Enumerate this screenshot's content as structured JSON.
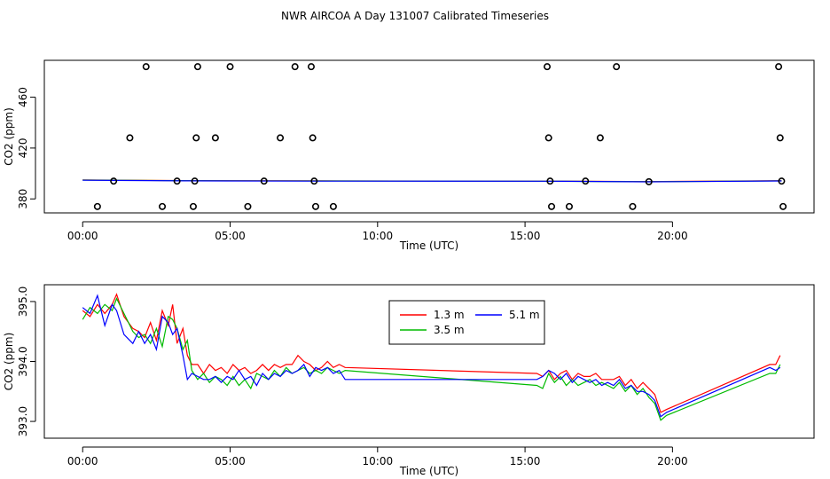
{
  "page": {
    "title": "NWR AIRCOA A  Day 131007  Calibrated Timeseries"
  },
  "chart_data": [
    {
      "type": "scatter",
      "title": "",
      "xlabel": "Time (UTC)",
      "ylabel": "CO2 (ppm)",
      "xlim": [
        -1.3,
        24.8
      ],
      "ylim": [
        369,
        489
      ],
      "x_ticks": [
        0,
        5,
        10,
        15,
        20
      ],
      "x_tick_labels": [
        "00:00",
        "05:00",
        "10:00",
        "15:00",
        "20:00"
      ],
      "y_ticks": [
        380,
        420,
        460
      ],
      "y_tick_labels": [
        "380",
        "420",
        "460"
      ],
      "points": [
        {
          "x": 0.5,
          "y": 374
        },
        {
          "x": 1.05,
          "y": 394
        },
        {
          "x": 1.6,
          "y": 428
        },
        {
          "x": 2.15,
          "y": 484
        },
        {
          "x": 2.7,
          "y": 374
        },
        {
          "x": 3.2,
          "y": 394
        },
        {
          "x": 3.75,
          "y": 374
        },
        {
          "x": 3.8,
          "y": 394
        },
        {
          "x": 3.85,
          "y": 428
        },
        {
          "x": 3.9,
          "y": 484
        },
        {
          "x": 4.5,
          "y": 428
        },
        {
          "x": 5.0,
          "y": 484
        },
        {
          "x": 5.6,
          "y": 374
        },
        {
          "x": 6.15,
          "y": 394
        },
        {
          "x": 6.7,
          "y": 428
        },
        {
          "x": 7.2,
          "y": 484
        },
        {
          "x": 7.75,
          "y": 484
        },
        {
          "x": 7.8,
          "y": 428
        },
        {
          "x": 7.85,
          "y": 394
        },
        {
          "x": 7.9,
          "y": 374
        },
        {
          "x": 8.5,
          "y": 374
        },
        {
          "x": 15.75,
          "y": 484
        },
        {
          "x": 15.8,
          "y": 428
        },
        {
          "x": 15.85,
          "y": 394
        },
        {
          "x": 15.9,
          "y": 374
        },
        {
          "x": 16.5,
          "y": 374
        },
        {
          "x": 17.05,
          "y": 394
        },
        {
          "x": 17.55,
          "y": 428
        },
        {
          "x": 18.1,
          "y": 484
        },
        {
          "x": 18.65,
          "y": 374
        },
        {
          "x": 19.2,
          "y": 393.5
        },
        {
          "x": 23.6,
          "y": 484
        },
        {
          "x": 23.65,
          "y": 428
        },
        {
          "x": 23.7,
          "y": 394
        },
        {
          "x": 23.75,
          "y": 374
        }
      ],
      "series": [
        {
          "name": "1.3 m",
          "color": "#ff0000",
          "x": [
            0,
            3.5,
            8,
            15.8,
            19.2,
            23.7
          ],
          "values": [
            394.9,
            394.4,
            394.2,
            394.0,
            393.6,
            394.3
          ]
        },
        {
          "name": "3.5 m",
          "color": "#00cc00",
          "x": [
            0,
            3.5,
            8,
            15.8,
            19.2,
            23.7
          ],
          "values": [
            394.8,
            394.3,
            394.1,
            393.9,
            393.5,
            394.2
          ]
        },
        {
          "name": "5.1 m",
          "color": "#0000ff",
          "x": [
            0,
            3.5,
            8,
            15.8,
            19.2,
            23.7
          ],
          "values": [
            394.7,
            394.2,
            394.0,
            393.9,
            393.4,
            394.1
          ]
        }
      ]
    },
    {
      "type": "line",
      "title": "",
      "xlabel": "Time (UTC)",
      "ylabel": "CO2 (ppm)",
      "xlim": [
        -1.3,
        24.8
      ],
      "ylim": [
        392.72,
        395.28
      ],
      "x_ticks": [
        0,
        5,
        10,
        15,
        20
      ],
      "x_tick_labels": [
        "00:00",
        "05:00",
        "10:00",
        "15:00",
        "20:00"
      ],
      "y_ticks": [
        393.0,
        394.0,
        395.0
      ],
      "y_tick_labels": [
        "393.0",
        "394.0",
        "395.0"
      ],
      "legend": {
        "position": "top-center",
        "labels": [
          "1.3 m",
          "5.1 m",
          "3.5 m"
        ]
      },
      "series": [
        {
          "name": "1.3 m",
          "color": "#ff0000",
          "x": [
            0.0,
            0.25,
            0.5,
            0.75,
            1.0,
            1.15,
            1.4,
            1.7,
            1.9,
            2.1,
            2.3,
            2.5,
            2.7,
            2.9,
            3.05,
            3.2,
            3.4,
            3.55,
            3.7,
            3.9,
            4.1,
            4.3,
            4.5,
            4.7,
            4.9,
            5.1,
            5.3,
            5.5,
            5.7,
            5.9,
            6.1,
            6.3,
            6.5,
            6.7,
            6.9,
            7.1,
            7.3,
            7.5,
            7.7,
            7.9,
            8.1,
            8.3,
            8.5,
            8.7,
            8.9,
            15.4,
            15.6,
            15.8,
            16.0,
            16.2,
            16.4,
            16.6,
            16.8,
            17.0,
            17.2,
            17.4,
            17.6,
            17.8,
            18.0,
            18.2,
            18.4,
            18.6,
            18.8,
            19.0,
            19.2,
            19.4,
            19.6,
            19.8,
            23.3,
            23.5,
            23.65
          ],
          "values": [
            394.85,
            394.75,
            394.95,
            394.8,
            394.95,
            395.12,
            394.75,
            394.55,
            394.5,
            394.4,
            394.65,
            394.35,
            394.85,
            394.6,
            394.95,
            394.3,
            394.55,
            394.1,
            393.95,
            393.95,
            393.8,
            393.95,
            393.85,
            393.9,
            393.8,
            393.95,
            393.85,
            393.9,
            393.8,
            393.85,
            393.95,
            393.85,
            393.95,
            393.9,
            393.95,
            393.95,
            394.1,
            394.0,
            393.95,
            393.85,
            393.9,
            394.0,
            393.9,
            393.95,
            393.9,
            393.8,
            393.75,
            393.85,
            393.7,
            393.8,
            393.85,
            393.7,
            393.8,
            393.75,
            393.75,
            393.8,
            393.7,
            393.7,
            393.7,
            393.75,
            393.6,
            393.7,
            393.55,
            393.65,
            393.55,
            393.45,
            393.15,
            393.2,
            393.95,
            393.95,
            394.1
          ]
        },
        {
          "name": "3.5 m",
          "color": "#00bb00",
          "x": [
            0.0,
            0.25,
            0.5,
            0.75,
            1.0,
            1.15,
            1.4,
            1.7,
            1.9,
            2.1,
            2.3,
            2.5,
            2.7,
            2.9,
            3.05,
            3.2,
            3.4,
            3.55,
            3.7,
            3.9,
            4.1,
            4.3,
            4.5,
            4.7,
            4.9,
            5.1,
            5.3,
            5.5,
            5.7,
            5.9,
            6.1,
            6.3,
            6.5,
            6.7,
            6.9,
            7.1,
            7.3,
            7.5,
            7.7,
            7.9,
            8.1,
            8.3,
            8.5,
            8.7,
            8.9,
            15.4,
            15.6,
            15.8,
            16.0,
            16.2,
            16.4,
            16.6,
            16.8,
            17.0,
            17.2,
            17.4,
            17.6,
            17.8,
            18.0,
            18.2,
            18.4,
            18.6,
            18.8,
            19.0,
            19.2,
            19.4,
            19.6,
            19.8,
            23.3,
            23.5,
            23.65
          ],
          "values": [
            394.7,
            394.9,
            394.8,
            394.95,
            394.85,
            395.05,
            394.8,
            394.5,
            394.4,
            394.45,
            394.3,
            394.55,
            394.25,
            394.75,
            394.7,
            394.55,
            394.2,
            394.35,
            393.85,
            393.7,
            393.8,
            393.65,
            393.75,
            393.7,
            393.6,
            393.75,
            393.6,
            393.7,
            393.55,
            393.8,
            393.75,
            393.7,
            393.85,
            393.75,
            393.9,
            393.8,
            393.85,
            393.9,
            393.8,
            393.85,
            393.8,
            393.9,
            393.85,
            393.8,
            393.85,
            393.6,
            393.55,
            393.8,
            393.65,
            393.75,
            393.6,
            393.7,
            393.6,
            393.65,
            393.7,
            393.6,
            393.65,
            393.6,
            393.55,
            393.65,
            393.5,
            393.6,
            393.45,
            393.55,
            393.4,
            393.3,
            393.02,
            393.1,
            393.8,
            393.8,
            393.95
          ]
        },
        {
          "name": "5.1 m",
          "color": "#0000ff",
          "x": [
            0.0,
            0.25,
            0.5,
            0.75,
            1.0,
            1.15,
            1.4,
            1.7,
            1.9,
            2.1,
            2.3,
            2.5,
            2.7,
            2.9,
            3.05,
            3.2,
            3.4,
            3.55,
            3.7,
            3.9,
            4.1,
            4.3,
            4.5,
            4.7,
            4.9,
            5.1,
            5.3,
            5.5,
            5.7,
            5.9,
            6.1,
            6.3,
            6.5,
            6.7,
            6.9,
            7.1,
            7.3,
            7.5,
            7.7,
            7.9,
            8.1,
            8.3,
            8.5,
            8.7,
            8.9,
            15.4,
            15.6,
            15.8,
            16.0,
            16.2,
            16.4,
            16.6,
            16.8,
            17.0,
            17.2,
            17.4,
            17.6,
            17.8,
            18.0,
            18.2,
            18.4,
            18.6,
            18.8,
            19.0,
            19.2,
            19.4,
            19.6,
            19.8,
            23.3,
            23.5,
            23.65
          ],
          "values": [
            394.9,
            394.8,
            395.1,
            394.6,
            394.95,
            394.85,
            394.45,
            394.3,
            394.5,
            394.3,
            394.45,
            394.2,
            394.75,
            394.65,
            394.45,
            394.55,
            394.1,
            393.7,
            393.8,
            393.75,
            393.7,
            393.7,
            393.75,
            393.65,
            393.75,
            393.7,
            393.85,
            393.7,
            393.75,
            393.6,
            393.8,
            393.7,
            393.8,
            393.75,
            393.85,
            393.8,
            393.85,
            393.95,
            393.75,
            393.9,
            393.85,
            393.9,
            393.8,
            393.85,
            393.7,
            393.7,
            393.75,
            393.85,
            393.8,
            393.7,
            393.8,
            393.65,
            393.75,
            393.7,
            393.65,
            393.7,
            393.6,
            393.65,
            393.6,
            393.7,
            393.55,
            393.6,
            393.5,
            393.5,
            393.45,
            393.35,
            393.08,
            393.15,
            393.9,
            393.85,
            393.9
          ]
        }
      ]
    }
  ]
}
